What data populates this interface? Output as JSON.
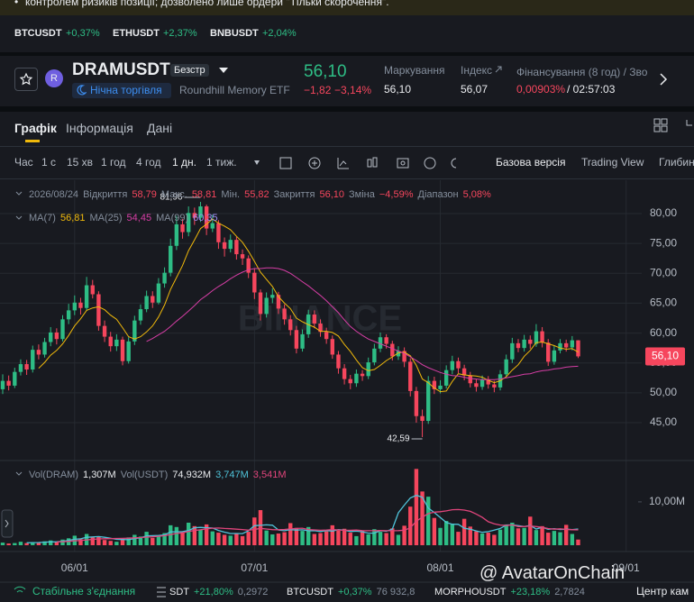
{
  "banner": "контролем ризиків позиції; дозволено лише ордери \"Тільки скорочення\".",
  "tickers": [
    {
      "symbol": "BTCUSDT",
      "change": "+0,37%"
    },
    {
      "symbol": "ETHUSDT",
      "change": "+2,37%"
    },
    {
      "symbol": "BNBUSDT",
      "change": "+2,04%"
    }
  ],
  "symbol": {
    "icon": "R",
    "name": "DRAMUSDT",
    "badge": "Безстр",
    "session": "Нічна торгівля",
    "description": "Roundhill Memory ETF",
    "price": "56,10",
    "change": "−1,82",
    "change_pct": "−3,14%"
  },
  "stats": [
    {
      "label": "Маркування",
      "value": "56,10"
    },
    {
      "label": "Індекс",
      "value": "56,07"
    },
    {
      "label": "Фінансування (8 год) / Зво",
      "value": "0,00903%",
      "extra": "/ 02:57:03"
    }
  ],
  "tabs": [
    "Графік",
    "Інформація",
    "Дані"
  ],
  "intervals": [
    "Час",
    "1 с",
    "15 хв",
    "1 год",
    "4 год",
    "1 дн.",
    "1 тиж."
  ],
  "views": [
    "Базова версія",
    "Trading View",
    "Глибин"
  ],
  "chart_data": {
    "type": "candlestick",
    "ohlc_legend": {
      "date": "2026/08/24",
      "items": [
        {
          "label": "Відкриття",
          "value": "58,79"
        },
        {
          "label": "Макс.",
          "value": "58,81"
        },
        {
          "label": "Мін.",
          "value": "55,82"
        },
        {
          "label": "Закриття",
          "value": "56,10"
        },
        {
          "label": "Зміна",
          "value": "−4,59%"
        },
        {
          "label": "Діапазон",
          "value": "5,08%"
        }
      ]
    },
    "open": [
      50.6,
      52.0,
      51.2,
      53.5,
      54.8,
      53.9,
      57.2,
      56.4,
      58.5,
      60.1,
      59.0,
      62.3,
      63.8,
      65.1,
      64.2,
      68.0,
      66.5,
      61.2,
      59.4,
      57.8,
      58.9,
      55.3,
      58.6,
      62.1,
      64.0,
      66.2,
      65.1,
      68.3,
      70.1,
      74.6,
      78.2,
      76.9,
      80.1,
      79.3,
      81.2,
      77.5,
      78.4,
      75.2,
      74.1,
      75.6,
      73.2,
      72.5,
      70.1,
      66.8,
      63.2,
      65.9,
      66.4,
      64.1,
      62.3,
      60.5,
      57.4,
      59.8,
      63.1,
      61.6,
      60.2,
      59.0,
      56.4,
      54.1,
      52.3,
      51.6,
      53.2,
      52.8,
      55.1,
      57.4,
      59.3,
      58.2,
      56.1,
      57.0,
      55.2,
      50.3,
      46.1,
      45.3,
      52.0,
      50.6,
      51.2,
      53.8,
      55.3,
      54.1,
      52.9,
      51.6,
      51.0,
      52.2,
      51.4,
      50.9,
      53.1,
      55.6,
      58.3,
      57.5,
      58.9,
      58.2,
      60.3,
      58.4,
      55.2,
      57.1,
      58.3,
      57.6,
      58.79
    ],
    "high": [
      53.1,
      52.9,
      54.2,
      55.6,
      55.5,
      57.9,
      58.1,
      59.2,
      61.0,
      60.8,
      63.0,
      64.9,
      66.3,
      65.9,
      69.4,
      68.9,
      67.0,
      62.1,
      60.2,
      59.8,
      59.4,
      59.3,
      62.9,
      64.8,
      67.1,
      67.0,
      69.2,
      71.0,
      75.8,
      79.6,
      79.1,
      81.2,
      81.0,
      81.96,
      81.5,
      79.8,
      78.9,
      76.0,
      76.5,
      76.1,
      74.0,
      73.0,
      70.8,
      67.3,
      66.8,
      67.5,
      66.9,
      64.8,
      63.0,
      61.2,
      60.6,
      63.9,
      63.8,
      62.3,
      60.9,
      59.6,
      57.0,
      54.8,
      53.0,
      53.9,
      53.8,
      55.9,
      58.2,
      60.1,
      59.8,
      58.7,
      57.8,
      57.6,
      55.8,
      51.0,
      47.2,
      52.8,
      52.7,
      52.1,
      54.6,
      56.2,
      55.9,
      54.7,
      53.5,
      52.3,
      52.9,
      52.8,
      52.0,
      53.8,
      56.4,
      59.2,
      59.0,
      59.7,
      59.6,
      61.5,
      61.0,
      59.0,
      57.9,
      59.0,
      58.9,
      59.5,
      58.81
    ],
    "low": [
      49.8,
      50.4,
      50.8,
      52.9,
      53.0,
      53.4,
      55.6,
      55.9,
      57.8,
      58.1,
      58.6,
      61.5,
      63.0,
      63.1,
      63.7,
      65.8,
      60.4,
      58.5,
      56.9,
      57.0,
      54.6,
      54.9,
      58.0,
      61.4,
      63.5,
      64.2,
      64.8,
      67.6,
      69.5,
      73.9,
      75.8,
      76.2,
      78.1,
      78.6,
      76.4,
      76.9,
      74.1,
      72.8,
      73.5,
      72.3,
      71.4,
      69.2,
      65.7,
      62.1,
      62.6,
      65.0,
      63.2,
      61.4,
      59.6,
      56.6,
      56.9,
      59.2,
      60.8,
      59.4,
      58.2,
      55.7,
      53.2,
      51.4,
      50.6,
      51.0,
      52.0,
      52.3,
      54.6,
      56.8,
      57.4,
      55.4,
      55.5,
      54.3,
      49.4,
      45.0,
      42.59,
      44.8,
      49.8,
      49.9,
      50.7,
      53.1,
      53.3,
      52.1,
      50.9,
      50.2,
      50.5,
      50.7,
      50.1,
      50.4,
      52.7,
      55.0,
      56.8,
      56.9,
      57.4,
      57.7,
      57.6,
      54.5,
      54.7,
      56.6,
      56.9,
      57.1,
      55.82
    ],
    "close": [
      52.0,
      51.2,
      53.5,
      54.8,
      53.9,
      57.2,
      56.4,
      58.5,
      60.1,
      59.0,
      62.3,
      63.8,
      65.1,
      64.2,
      68.0,
      66.5,
      61.2,
      59.4,
      57.8,
      58.9,
      55.3,
      58.6,
      62.1,
      64.0,
      66.2,
      65.1,
      68.3,
      70.1,
      74.6,
      78.2,
      76.9,
      80.1,
      79.3,
      81.2,
      77.5,
      78.4,
      75.2,
      74.1,
      75.6,
      73.2,
      72.5,
      70.1,
      66.8,
      63.2,
      65.9,
      66.4,
      64.1,
      62.3,
      60.5,
      57.4,
      59.8,
      63.1,
      61.6,
      60.2,
      59.0,
      56.4,
      54.1,
      52.3,
      51.6,
      53.2,
      52.8,
      55.1,
      57.4,
      59.3,
      58.2,
      56.1,
      57.0,
      55.2,
      50.3,
      46.1,
      45.3,
      52.0,
      50.6,
      51.2,
      53.8,
      55.3,
      54.1,
      52.9,
      51.6,
      51.0,
      52.2,
      51.4,
      50.9,
      53.1,
      55.6,
      58.3,
      57.5,
      58.9,
      58.2,
      60.3,
      58.4,
      55.2,
      57.1,
      58.3,
      57.6,
      58.79,
      56.1
    ],
    "up_color": "#2ebd85",
    "down_color": "#f6465d",
    "ma": [
      {
        "name": "MA(7)",
        "value_label": "56,81",
        "color": "#f0b90b",
        "values": [
          null,
          null,
          null,
          null,
          null,
          null,
          54.1,
          55.1,
          56.3,
          57.1,
          58.2,
          59.6,
          61.2,
          62.4,
          63.8,
          64.2,
          64.4,
          63.9,
          63.0,
          62.3,
          60.9,
          59.4,
          59.0,
          59.4,
          60.2,
          61.2,
          62.7,
          64.7,
          67.3,
          69.3,
          71.3,
          73.8,
          75.6,
          77.5,
          78.2,
          79.1,
          78.4,
          77.9,
          77.3,
          76.2,
          75.2,
          73.7,
          72.0,
          70.2,
          69.0,
          67.8,
          66.1,
          65.0,
          64.1,
          62.5,
          61.9,
          61.4,
          61.0,
          60.3,
          60.3,
          60.1,
          59.5,
          58.1,
          56.9,
          55.5,
          54.2,
          53.7,
          53.9,
          54.6,
          55.4,
          56.0,
          56.7,
          56.8,
          56.2,
          54.6,
          52.3,
          51.7,
          50.8,
          50.2,
          50.3,
          51.9,
          53.2,
          53.0,
          52.9,
          52.8,
          52.6,
          52.1,
          51.7,
          52.0,
          52.7,
          53.8,
          54.7,
          56.1,
          57.1,
          58.4,
          58.5,
          58.2,
          57.9,
          57.5,
          57.3,
          57.4,
          56.81
        ]
      },
      {
        "name": "MA(25)",
        "value_label": "54,45",
        "color": "#d63ea5",
        "values": [
          null,
          null,
          null,
          null,
          null,
          null,
          null,
          null,
          null,
          null,
          null,
          null,
          null,
          null,
          null,
          null,
          null,
          null,
          null,
          null,
          null,
          null,
          null,
          null,
          58.6,
          59.1,
          59.7,
          60.3,
          61.1,
          62.0,
          62.8,
          63.7,
          64.6,
          65.6,
          66.3,
          67.1,
          67.8,
          68.4,
          69.1,
          69.7,
          70.2,
          70.6,
          70.8,
          70.8,
          70.9,
          70.9,
          70.8,
          70.5,
          70.0,
          69.3,
          68.6,
          67.9,
          67.1,
          66.3,
          65.4,
          64.4,
          63.4,
          62.2,
          61.1,
          60.3,
          59.6,
          59.0,
          58.6,
          58.2,
          57.8,
          57.4,
          57.0,
          56.6,
          56.0,
          55.4,
          54.7,
          54.2,
          53.8,
          53.4,
          53.1,
          52.9,
          52.8,
          52.6,
          52.4,
          52.3,
          52.2,
          52.2,
          52.2,
          52.3,
          52.5,
          52.7,
          52.9,
          53.1,
          53.2,
          53.5,
          53.7,
          53.8,
          54.0,
          54.1,
          54.3,
          54.4,
          54.45
        ]
      },
      {
        "name": "MA(99)",
        "value_label": "60,35",
        "color": "#9f8cf2"
      }
    ],
    "high_label": "81,96",
    "low_label": "42,59",
    "last_price_label": "56,10",
    "watermark": "BINANCE",
    "xlim": [
      0,
      106
    ],
    "xticks": [
      {
        "value": 12,
        "label": "06/01"
      },
      {
        "value": 42,
        "label": "07/01"
      },
      {
        "value": 73,
        "label": "08/01"
      },
      {
        "value": 104,
        "label": "09/01"
      }
    ],
    "ylim": [
      38.82,
      85.58
    ],
    "yticks": [
      {
        "value": 45,
        "label": "45,00"
      },
      {
        "value": 50,
        "label": "50,00"
      },
      {
        "value": 55,
        "label": "55,00"
      },
      {
        "value": 60,
        "label": "60,00"
      },
      {
        "value": 65,
        "label": "65,00"
      },
      {
        "value": 70,
        "label": "70,00"
      },
      {
        "value": 75,
        "label": "75,00"
      },
      {
        "value": 80,
        "label": "80,00"
      }
    ],
    "grid": true,
    "volume": {
      "legend": [
        {
          "label": "Vol(DRAM)",
          "value": "1,307M"
        },
        {
          "label": "Vol(USDT)",
          "value": "74,932M"
        }
      ],
      "values": [
        0.6,
        0.4,
        0.5,
        0.8,
        0.5,
        0.7,
        0.6,
        0.9,
        1.1,
        0.7,
        1.3,
        1.6,
        2.2,
        1.4,
        2.6,
        1.8,
        2.0,
        1.2,
        1.0,
        0.8,
        1.5,
        1.8,
        2.4,
        2.0,
        3.1,
        1.7,
        2.2,
        2.8,
        4.6,
        4.2,
        3.0,
        5.2,
        4.4,
        3.6,
        4.8,
        3.2,
        2.9,
        2.4,
        2.2,
        2.8,
        2.1,
        3.1,
        6.4,
        8.1,
        3.4,
        2.5,
        2.7,
        3.0,
        5.1,
        4.0,
        3.3,
        4.2,
        2.6,
        2.8,
        3.2,
        4.6,
        3.4,
        3.8,
        2.9,
        2.1,
        3.3,
        2.5,
        3.7,
        3.1,
        2.8,
        3.9,
        2.4,
        4.5,
        8.9,
        17.6,
        12.4,
        11.2,
        6.3,
        4.0,
        5.6,
        4.9,
        3.1,
        6.1,
        4.3,
        3.2,
        2.7,
        2.9,
        2.4,
        3.6,
        4.8,
        5.2,
        3.9,
        4.0,
        6.6,
        3.5,
        4.4,
        2.9,
        3.3,
        3.0,
        4.7,
        2.6,
        1.307
      ],
      "ylim": [
        0,
        18.3
      ],
      "yticks": [
        {
          "value": 10,
          "label": "10,00M"
        }
      ],
      "ma": [
        {
          "value_label": "3,747M",
          "color": "#4fc3d9",
          "values": [
            null,
            null,
            null,
            null,
            0.56,
            0.6,
            0.62,
            0.7,
            0.76,
            0.8,
            0.92,
            1.12,
            1.38,
            1.48,
            1.82,
            1.92,
            2.0,
            1.84,
            1.6,
            1.36,
            1.3,
            1.26,
            1.54,
            1.7,
            2.16,
            2.2,
            2.24,
            2.36,
            3.08,
            3.1,
            3.14,
            3.4,
            4.04,
            4.12,
            4.04,
            3.98,
            3.42,
            3.02,
            2.7,
            2.7,
            2.68,
            3.34,
            4.52,
            4.6,
            4.7,
            4.62,
            3.52,
            3.34,
            3.6,
            3.5,
            3.56,
            3.32,
            3.34,
            3.16,
            3.4,
            3.24,
            3.62,
            3.48,
            3.16,
            3.24,
            3.1,
            2.78,
            2.8,
            3.34,
            3.22,
            3.72,
            7.48,
            9.26,
            10.92,
            11.52,
            11.06,
            8.56,
            7.54,
            6.4,
            5.24,
            4.84,
            4.82,
            3.92,
            3.68,
            3.3,
            2.98,
            3.14,
            3.48,
            3.86,
            4.66,
            4.7,
            4.52,
            4.3,
            4.56,
            3.74,
            4.14,
            3.66,
            3.8,
            3.62,
            3.7,
            3.6,
            3.747
          ]
        },
        {
          "value_label": "3,541M",
          "color": "#e0457b",
          "values": [
            null,
            null,
            null,
            null,
            null,
            null,
            null,
            null,
            null,
            0.75,
            0.82,
            0.9,
            1.02,
            1.1,
            1.22,
            1.36,
            1.46,
            1.5,
            1.52,
            1.56,
            1.58,
            1.62,
            1.7,
            1.76,
            1.88,
            1.96,
            2.06,
            2.2,
            2.46,
            2.72,
            2.88,
            3.18,
            3.42,
            3.58,
            3.78,
            3.92,
            3.98,
            3.86,
            3.8,
            3.7,
            3.62,
            3.48,
            3.64,
            3.88,
            3.74,
            3.6,
            3.58,
            3.64,
            3.76,
            3.86,
            3.92,
            3.62,
            3.54,
            3.46,
            3.52,
            3.62,
            3.54,
            3.44,
            3.46,
            3.5,
            3.36,
            3.34,
            3.34,
            3.4,
            3.34,
            3.34,
            3.36,
            3.48,
            4.02,
            5.56,
            6.46,
            7.3,
            7.64,
            7.74,
            7.92,
            8.2,
            8.24,
            8.12,
            7.82,
            7.2,
            6.42,
            5.42,
            4.94,
            4.66,
            4.54,
            4.7,
            4.3,
            4.3,
            4.46,
            4.3,
            4.12,
            3.84,
            3.7,
            3.78,
            3.66,
            3.58,
            3.541
          ]
        }
      ]
    }
  },
  "overlay_watermark": "@ AvatarOnChain",
  "status_bar": {
    "connection": "Стабільне з'єднання",
    "tickers": [
      {
        "symbol": "SDT",
        "change": "+21,80%",
        "price": "0,2972"
      },
      {
        "symbol": "BTCUSDT",
        "change": "+0,37%",
        "price": "76 932,8"
      },
      {
        "symbol": "MORPHOUSDT",
        "change": "+23,18%",
        "price": "2,7824"
      }
    ],
    "right": "Центр кам"
  }
}
